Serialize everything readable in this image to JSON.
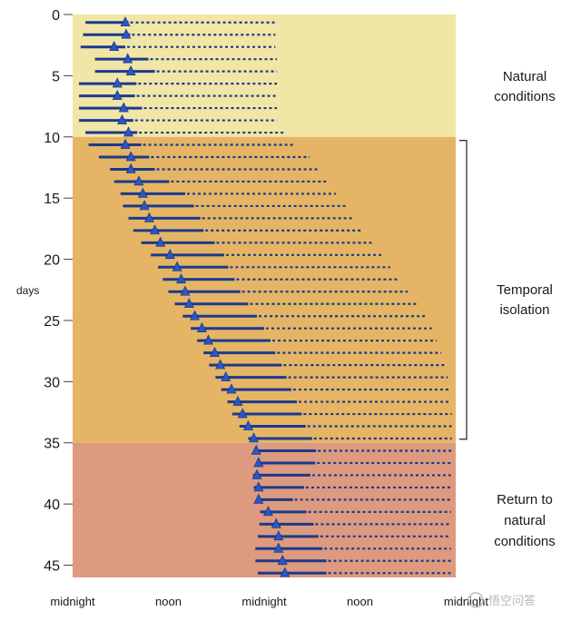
{
  "chart_data": {
    "type": "scatter",
    "ylabel": "days",
    "y_ticks": [
      0,
      5,
      10,
      15,
      20,
      25,
      30,
      35,
      40,
      45
    ],
    "ylim": [
      0,
      46
    ],
    "x_tick_labels": [
      "midnight",
      "noon",
      "midnight",
      "noon",
      "midnight"
    ],
    "x_ticks_hours": [
      0,
      12,
      24,
      36,
      48
    ],
    "xlim_hours": [
      0,
      48
    ],
    "series": [
      {
        "name": "sleep (solid bar)",
        "color": "#1b3a8c"
      },
      {
        "name": "wake (dotted bar)",
        "color": "#1b3a8c"
      },
      {
        "name": "temperature minimum (triangle)",
        "color": "#2a56c6"
      }
    ],
    "phases": [
      {
        "label_lines": [
          "Natural",
          "conditions"
        ],
        "from_day": 0,
        "to_day": 10,
        "color": "#f2e6a6"
      },
      {
        "label_lines": [
          "Temporal",
          "isolation"
        ],
        "from_day": 10,
        "to_day": 35,
        "color": "#e5b565"
      },
      {
        "label_lines": [
          "Return to",
          "natural",
          "conditions"
        ],
        "from_day": 35,
        "to_day": 46,
        "color": "#dd9a7e"
      }
    ],
    "days": [
      {
        "day": 1,
        "sleep_start": 1.6,
        "sleep_end": 7.0,
        "min": 6.6,
        "wake_end": 25.4
      },
      {
        "day": 2,
        "sleep_start": 1.3,
        "sleep_end": 7.2,
        "min": 6.7,
        "wake_end": 25.4
      },
      {
        "day": 3,
        "sleep_start": 1.0,
        "sleep_end": 6.6,
        "min": 5.2,
        "wake_end": 25.4
      },
      {
        "day": 4,
        "sleep_start": 2.8,
        "sleep_end": 9.5,
        "min": 6.9,
        "wake_end": 25.6
      },
      {
        "day": 5,
        "sleep_start": 2.8,
        "sleep_end": 10.3,
        "min": 7.3,
        "wake_end": 25.6
      },
      {
        "day": 6,
        "sleep_start": 0.8,
        "sleep_end": 8.0,
        "min": 5.6,
        "wake_end": 25.6
      },
      {
        "day": 7,
        "sleep_start": 0.8,
        "sleep_end": 7.8,
        "min": 5.6,
        "wake_end": 25.6
      },
      {
        "day": 8,
        "sleep_start": 0.8,
        "sleep_end": 8.7,
        "min": 6.4,
        "wake_end": 25.6
      },
      {
        "day": 9,
        "sleep_start": 0.8,
        "sleep_end": 7.6,
        "min": 6.2,
        "wake_end": 25.6
      },
      {
        "day": 10,
        "sleep_start": 1.6,
        "sleep_end": 8.1,
        "min": 7.0,
        "wake_end": 26.5
      },
      {
        "day": 11,
        "sleep_start": 2.0,
        "sleep_end": 8.6,
        "min": 6.6,
        "wake_end": 27.6
      },
      {
        "day": 12,
        "sleep_start": 3.3,
        "sleep_end": 9.6,
        "min": 7.3,
        "wake_end": 29.7
      },
      {
        "day": 13,
        "sleep_start": 4.7,
        "sleep_end": 10.3,
        "min": 7.3,
        "wake_end": 30.8
      },
      {
        "day": 14,
        "sleep_start": 5.2,
        "sleep_end": 12.1,
        "min": 8.3,
        "wake_end": 31.9
      },
      {
        "day": 15,
        "sleep_start": 6.0,
        "sleep_end": 14.1,
        "min": 8.8,
        "wake_end": 33.0
      },
      {
        "day": 16,
        "sleep_start": 6.3,
        "sleep_end": 15.2,
        "min": 9.0,
        "wake_end": 34.2
      },
      {
        "day": 17,
        "sleep_start": 7.0,
        "sleep_end": 16.0,
        "min": 9.6,
        "wake_end": 35.3
      },
      {
        "day": 18,
        "sleep_start": 7.6,
        "sleep_end": 16.4,
        "min": 10.3,
        "wake_end": 36.4
      },
      {
        "day": 19,
        "sleep_start": 8.6,
        "sleep_end": 17.8,
        "min": 11.0,
        "wake_end": 37.5
      },
      {
        "day": 20,
        "sleep_start": 9.8,
        "sleep_end": 19.0,
        "min": 12.2,
        "wake_end": 38.7
      },
      {
        "day": 21,
        "sleep_start": 10.7,
        "sleep_end": 19.5,
        "min": 13.1,
        "wake_end": 39.8
      },
      {
        "day": 22,
        "sleep_start": 11.3,
        "sleep_end": 20.3,
        "min": 13.6,
        "wake_end": 40.9
      },
      {
        "day": 23,
        "sleep_start": 12.0,
        "sleep_end": 21.0,
        "min": 14.1,
        "wake_end": 42.0
      },
      {
        "day": 24,
        "sleep_start": 12.8,
        "sleep_end": 22.0,
        "min": 14.6,
        "wake_end": 43.1
      },
      {
        "day": 25,
        "sleep_start": 13.8,
        "sleep_end": 23.1,
        "min": 15.3,
        "wake_end": 44.3
      },
      {
        "day": 26,
        "sleep_start": 14.8,
        "sleep_end": 24.0,
        "min": 16.2,
        "wake_end": 45.0
      },
      {
        "day": 27,
        "sleep_start": 15.6,
        "sleep_end": 24.8,
        "min": 17.0,
        "wake_end": 45.6
      },
      {
        "day": 28,
        "sleep_start": 16.4,
        "sleep_end": 25.4,
        "min": 17.8,
        "wake_end": 46.2
      },
      {
        "day": 29,
        "sleep_start": 17.1,
        "sleep_end": 26.2,
        "min": 18.5,
        "wake_end": 46.6
      },
      {
        "day": 30,
        "sleep_start": 17.9,
        "sleep_end": 26.8,
        "min": 19.2,
        "wake_end": 47.0
      },
      {
        "day": 31,
        "sleep_start": 18.6,
        "sleep_end": 27.4,
        "min": 19.9,
        "wake_end": 47.2
      },
      {
        "day": 32,
        "sleep_start": 19.4,
        "sleep_end": 28.1,
        "min": 20.7,
        "wake_end": 47.4
      },
      {
        "day": 33,
        "sleep_start": 20.0,
        "sleep_end": 28.7,
        "min": 21.3,
        "wake_end": 47.5
      },
      {
        "day": 34,
        "sleep_start": 20.9,
        "sleep_end": 29.2,
        "min": 22.0,
        "wake_end": 47.5
      },
      {
        "day": 35,
        "sleep_start": 22.0,
        "sleep_end": 30.0,
        "min": 22.7,
        "wake_end": 47.5
      },
      {
        "day": 36,
        "sleep_start": 22.9,
        "sleep_end": 30.5,
        "min": 23.0,
        "wake_end": 47.5
      },
      {
        "day": 37,
        "sleep_start": 23.1,
        "sleep_end": 30.4,
        "min": 23.3,
        "wake_end": 47.4
      },
      {
        "day": 38,
        "sleep_start": 22.6,
        "sleep_end": 29.8,
        "min": 23.1,
        "wake_end": 47.4
      },
      {
        "day": 39,
        "sleep_start": 22.7,
        "sleep_end": 29.0,
        "min": 23.3,
        "wake_end": 47.4
      },
      {
        "day": 40,
        "sleep_start": 23.1,
        "sleep_end": 27.6,
        "min": 23.3,
        "wake_end": 47.4
      },
      {
        "day": 41,
        "sleep_start": 23.5,
        "sleep_end": 29.3,
        "min": 24.5,
        "wake_end": 47.4
      },
      {
        "day": 42,
        "sleep_start": 23.4,
        "sleep_end": 30.2,
        "min": 25.5,
        "wake_end": 47.4
      },
      {
        "day": 43,
        "sleep_start": 23.2,
        "sleep_end": 30.8,
        "min": 25.8,
        "wake_end": 47.4
      },
      {
        "day": 44,
        "sleep_start": 22.9,
        "sleep_end": 31.3,
        "min": 25.8,
        "wake_end": 47.4
      },
      {
        "day": 45,
        "sleep_start": 22.9,
        "sleep_end": 31.8,
        "min": 26.3,
        "wake_end": 47.4
      },
      {
        "day": 46,
        "sleep_start": 23.2,
        "sleep_end": 31.8,
        "min": 26.6,
        "wake_end": 47.4
      }
    ],
    "watermark": "悟空问答"
  }
}
